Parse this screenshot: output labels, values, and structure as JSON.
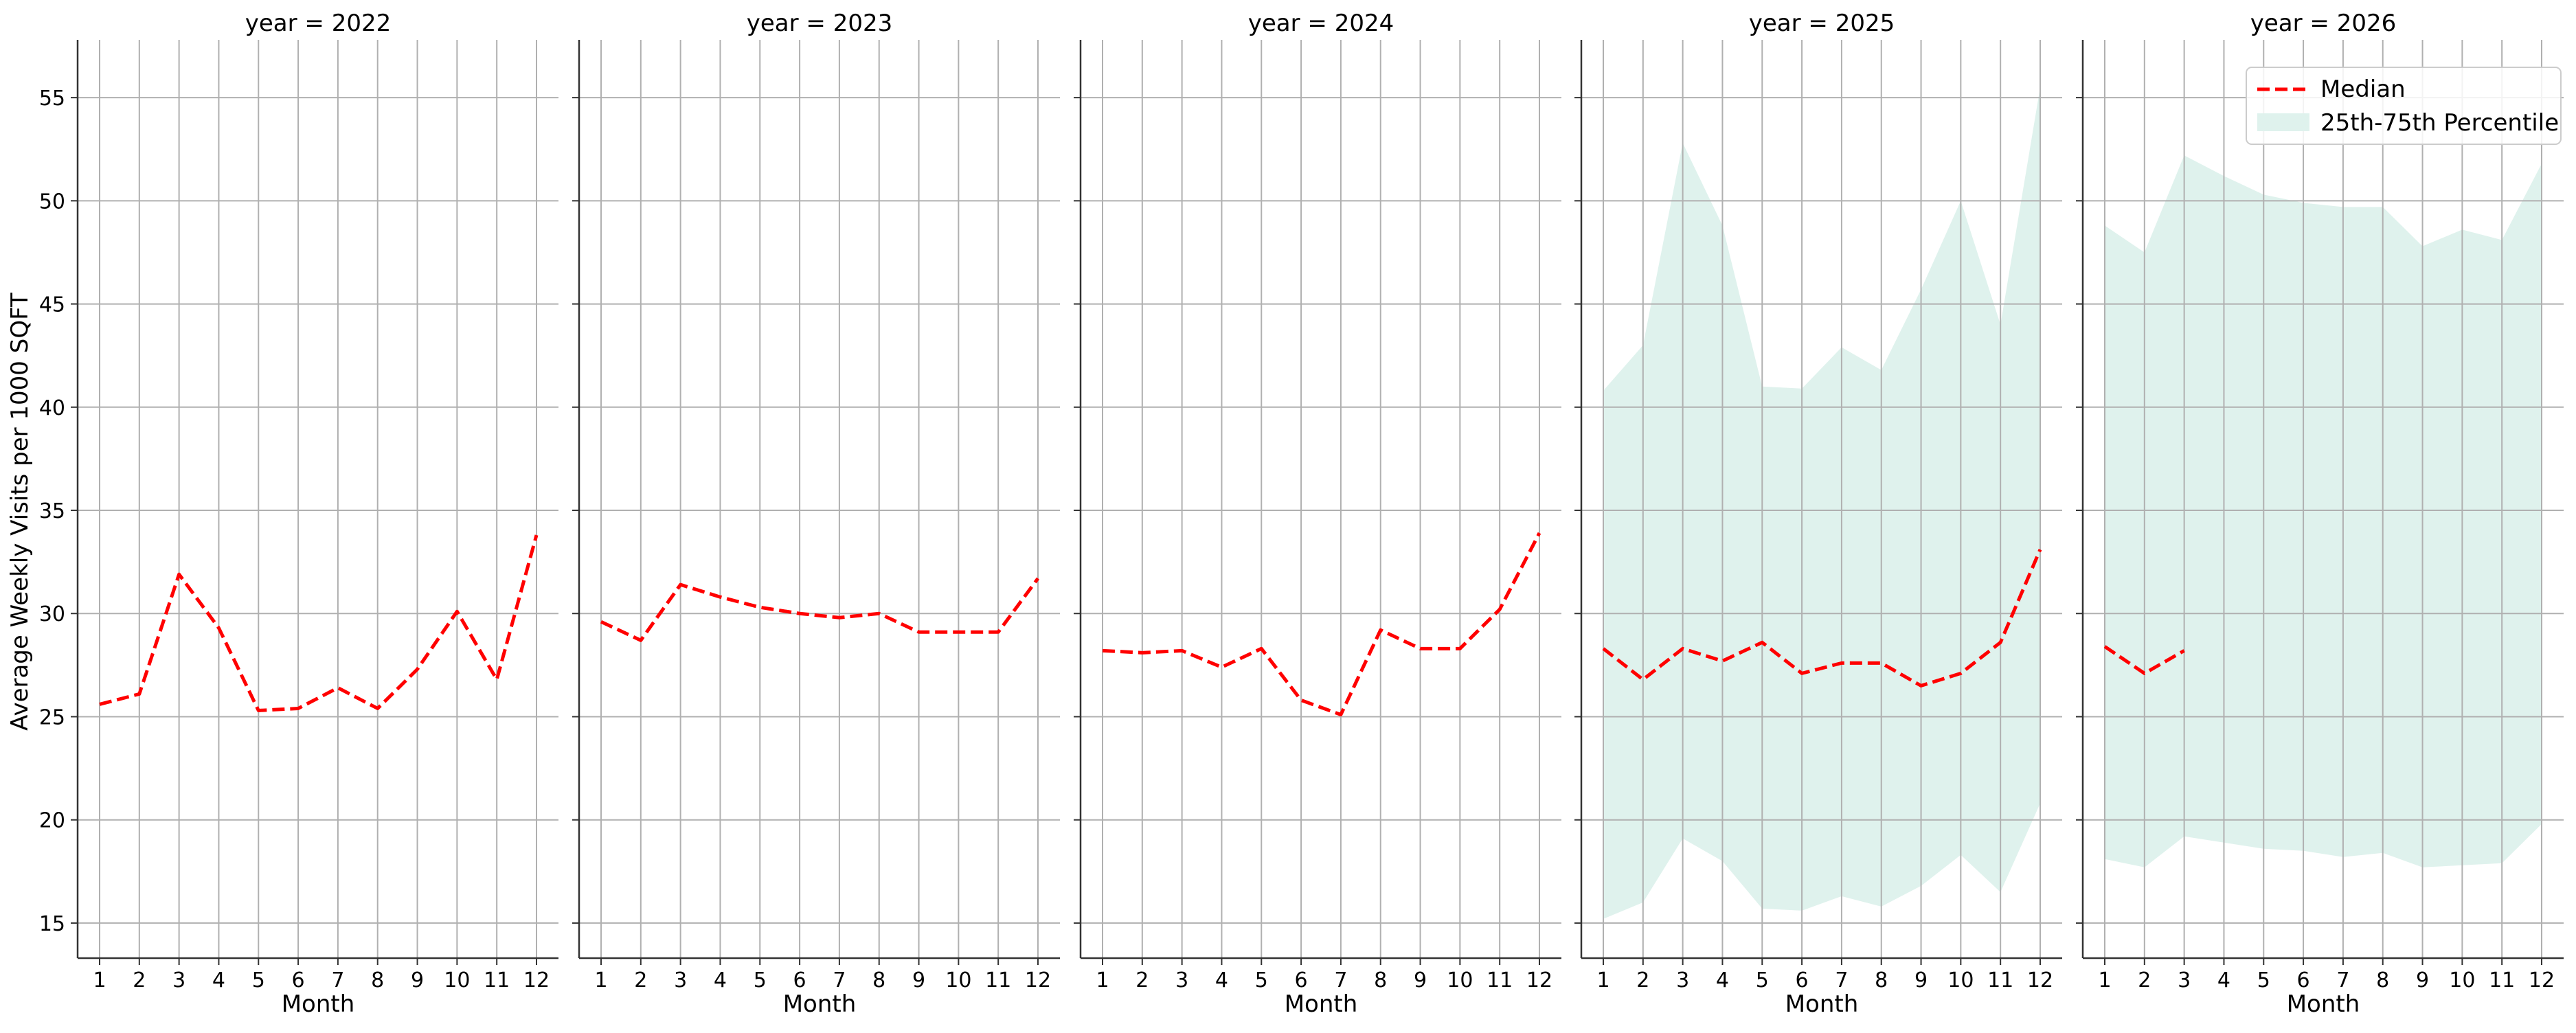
{
  "figure": {
    "ylabel": "Average Weekly Visits per 1000 SQFT",
    "xlabel": "Month",
    "legend_position": "top-right",
    "legend": {
      "median_label": "Median",
      "band_label": "25th-75th Percentile"
    },
    "colors": {
      "median": "#ff0000",
      "band": "#dff2ed",
      "grid": "#b0b0b0"
    }
  },
  "chart_data": {
    "type": "line",
    "layout": "facets by year",
    "ylim": [
      13.3,
      57.8
    ],
    "yticks": [
      15,
      20,
      25,
      30,
      35,
      40,
      45,
      50,
      55
    ],
    "xticks": [
      1,
      2,
      3,
      4,
      5,
      6,
      7,
      8,
      9,
      10,
      11,
      12
    ],
    "grid": true,
    "panels": [
      {
        "title": "year = 2022",
        "median": [
          [
            1,
            25.6
          ],
          [
            2,
            26.1
          ],
          [
            3,
            31.9
          ],
          [
            4,
            29.3
          ],
          [
            5,
            25.3
          ],
          [
            6,
            25.4
          ],
          [
            7,
            26.4
          ],
          [
            8,
            25.4
          ],
          [
            9,
            27.3
          ],
          [
            10,
            30.1
          ],
          [
            11,
            26.8
          ],
          [
            12,
            33.8
          ]
        ],
        "p25": null,
        "p75": null
      },
      {
        "title": "year = 2023",
        "median": [
          [
            1,
            29.6
          ],
          [
            2,
            28.7
          ],
          [
            3,
            31.4
          ],
          [
            4,
            30.8
          ],
          [
            5,
            30.3
          ],
          [
            6,
            30.0
          ],
          [
            7,
            29.8
          ],
          [
            8,
            30.0
          ],
          [
            9,
            29.1
          ],
          [
            10,
            29.1
          ],
          [
            11,
            29.1
          ],
          [
            12,
            31.7
          ]
        ],
        "p25": null,
        "p75": null
      },
      {
        "title": "year = 2024",
        "median": [
          [
            1,
            28.2
          ],
          [
            2,
            28.1
          ],
          [
            3,
            28.2
          ],
          [
            4,
            27.4
          ],
          [
            5,
            28.3
          ],
          [
            6,
            25.8
          ],
          [
            7,
            25.1
          ],
          [
            8,
            29.2
          ],
          [
            9,
            28.3
          ],
          [
            10,
            28.3
          ],
          [
            11,
            30.2
          ],
          [
            12,
            33.9
          ]
        ],
        "p25": null,
        "p75": null
      },
      {
        "title": "year = 2025",
        "median": [
          [
            1,
            28.3
          ],
          [
            2,
            26.8
          ],
          [
            3,
            28.3
          ],
          [
            4,
            27.7
          ],
          [
            5,
            28.6
          ],
          [
            6,
            27.1
          ],
          [
            7,
            27.6
          ],
          [
            8,
            27.6
          ],
          [
            9,
            26.5
          ],
          [
            10,
            27.1
          ],
          [
            11,
            28.6
          ],
          [
            12,
            33.1
          ]
        ],
        "p25": [
          [
            1,
            15.2
          ],
          [
            2,
            16.0
          ],
          [
            3,
            19.1
          ],
          [
            4,
            18.0
          ],
          [
            5,
            15.7
          ],
          [
            6,
            15.6
          ],
          [
            7,
            16.3
          ],
          [
            8,
            15.8
          ],
          [
            9,
            16.8
          ],
          [
            10,
            18.3
          ],
          [
            11,
            16.5
          ],
          [
            12,
            20.8
          ]
        ],
        "p75": [
          [
            1,
            40.8
          ],
          [
            2,
            43.0
          ],
          [
            3,
            52.8
          ],
          [
            4,
            48.8
          ],
          [
            5,
            41.0
          ],
          [
            6,
            40.9
          ],
          [
            7,
            42.9
          ],
          [
            8,
            41.8
          ],
          [
            9,
            45.7
          ],
          [
            10,
            50.0
          ],
          [
            11,
            44.0
          ],
          [
            12,
            55.5
          ]
        ]
      },
      {
        "title": "year = 2026",
        "median": [
          [
            1,
            28.4
          ],
          [
            2,
            27.1
          ],
          [
            3,
            28.2
          ]
        ],
        "p25": [
          [
            1,
            18.1
          ],
          [
            2,
            17.7
          ],
          [
            3,
            19.2
          ],
          [
            4,
            18.9
          ],
          [
            5,
            18.6
          ],
          [
            6,
            18.5
          ],
          [
            7,
            18.2
          ],
          [
            8,
            18.4
          ],
          [
            9,
            17.7
          ],
          [
            10,
            17.8
          ],
          [
            11,
            17.9
          ],
          [
            12,
            19.8
          ]
        ],
        "p75": [
          [
            1,
            48.8
          ],
          [
            2,
            47.5
          ],
          [
            3,
            52.2
          ],
          [
            4,
            51.2
          ],
          [
            5,
            50.3
          ],
          [
            6,
            49.9
          ],
          [
            7,
            49.7
          ],
          [
            8,
            49.7
          ],
          [
            9,
            47.8
          ],
          [
            10,
            48.6
          ],
          [
            11,
            48.1
          ],
          [
            12,
            51.8
          ]
        ]
      }
    ]
  }
}
